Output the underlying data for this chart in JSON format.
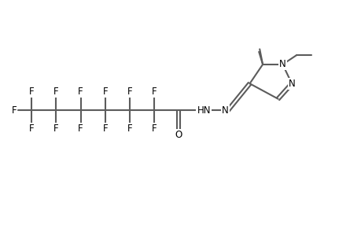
{
  "bg_color": "#ffffff",
  "line_color": "#5c5c5c",
  "text_color": "#000000",
  "bond_lw": 1.5,
  "font_size": 8.5,
  "fig_width": 4.6,
  "fig_height": 3.0,
  "dpi": 100,
  "xlim": [
    -1,
    46
  ],
  "ylim": [
    0,
    30
  ]
}
